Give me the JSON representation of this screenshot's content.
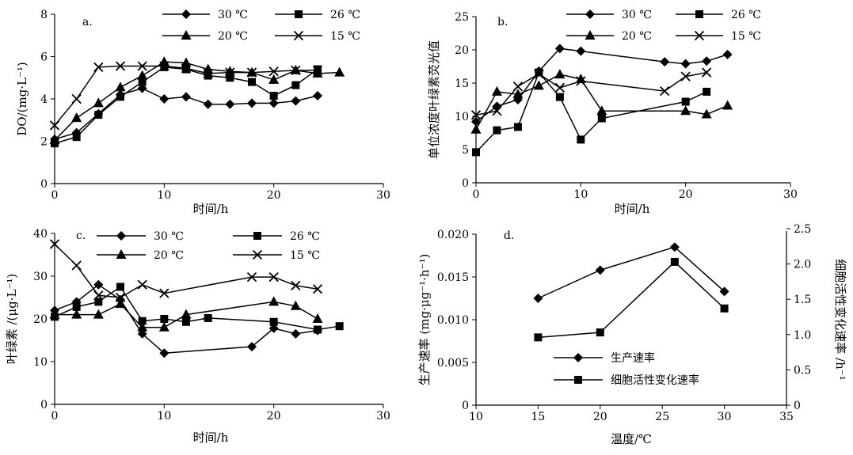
{
  "chart_data": [
    {
      "id": "a",
      "type": "line",
      "panel_label": "a.",
      "xlabel": "时间/h",
      "ylabel": "DO/(mg·L⁻¹)",
      "xlim": [
        0,
        30
      ],
      "ylim": [
        0,
        8
      ],
      "xticks": [
        0,
        10,
        20,
        30
      ],
      "yticks": [
        0,
        2,
        4,
        6,
        8
      ],
      "series": [
        {
          "name": "30 ℃",
          "marker": "diamond",
          "x": [
            0,
            2,
            4,
            6,
            8,
            10,
            12,
            14,
            16,
            18,
            20,
            22,
            24
          ],
          "y": [
            2.1,
            2.4,
            3.3,
            4.2,
            4.5,
            4.0,
            4.1,
            3.75,
            3.75,
            3.8,
            3.8,
            3.9,
            4.15
          ]
        },
        {
          "name": "26 ℃",
          "marker": "square",
          "x": [
            0,
            2,
            4,
            6,
            8,
            10,
            12,
            14,
            16,
            18,
            20,
            22,
            24
          ],
          "y": [
            1.9,
            2.2,
            3.25,
            4.1,
            4.8,
            5.5,
            5.4,
            5.1,
            5.0,
            4.8,
            4.15,
            4.65,
            5.4
          ]
        },
        {
          "name": "20 ℃",
          "marker": "triangle",
          "x": [
            0,
            2,
            4,
            6,
            8,
            10,
            12,
            14,
            16,
            18,
            20,
            22,
            24,
            26
          ],
          "y": [
            2.05,
            3.1,
            3.8,
            4.55,
            5.1,
            5.75,
            5.7,
            5.4,
            5.3,
            5.25,
            4.9,
            5.35,
            5.2,
            5.25
          ]
        },
        {
          "name": "15 ℃",
          "marker": "x",
          "x": [
            0,
            2,
            4,
            6,
            8,
            10,
            12,
            14,
            16,
            18,
            20,
            22,
            24
          ],
          "y": [
            2.75,
            4.0,
            5.5,
            5.55,
            5.55,
            5.55,
            5.45,
            5.2,
            5.25,
            5.25,
            5.3,
            5.35,
            5.35
          ]
        }
      ]
    },
    {
      "id": "b",
      "type": "line",
      "panel_label": "b.",
      "xlabel": "时间/h",
      "ylabel": "单位浓度叶绿素荧光值",
      "xlim": [
        0,
        30
      ],
      "ylim": [
        0,
        25
      ],
      "xticks": [
        0,
        10,
        20,
        30
      ],
      "yticks": [
        0,
        5,
        10,
        15,
        20,
        25
      ],
      "series": [
        {
          "name": "30 ℃",
          "marker": "diamond",
          "x": [
            0,
            2,
            4,
            6,
            8,
            10,
            18,
            20,
            22,
            24
          ],
          "y": [
            9.2,
            11.5,
            12.5,
            16.8,
            20.2,
            19.8,
            18.2,
            17.9,
            18.3,
            19.3
          ]
        },
        {
          "name": "26 ℃",
          "marker": "square",
          "x": [
            0,
            2,
            4,
            6,
            8,
            10,
            12,
            20,
            22
          ],
          "y": [
            4.6,
            7.9,
            8.4,
            16.6,
            12.9,
            6.5,
            9.7,
            12.2,
            13.7
          ]
        },
        {
          "name": "20 ℃",
          "marker": "triangle",
          "x": [
            0,
            2,
            4,
            6,
            8,
            10,
            12,
            20,
            22,
            24
          ],
          "y": [
            8.0,
            13.7,
            13.3,
            14.6,
            16.3,
            15.6,
            10.8,
            10.8,
            10.3,
            11.6
          ]
        },
        {
          "name": "15 ℃",
          "marker": "x",
          "x": [
            0,
            2,
            4,
            6,
            8,
            10,
            18,
            20,
            22
          ],
          "y": [
            10.2,
            10.8,
            14.5,
            16.4,
            14.3,
            15.3,
            13.8,
            16.0,
            16.6
          ]
        }
      ]
    },
    {
      "id": "c",
      "type": "line",
      "panel_label": "c.",
      "xlabel": "时间/h",
      "ylabel": "叶绿素 /(μg·L⁻¹)",
      "xlim": [
        0,
        30
      ],
      "ylim": [
        0,
        40
      ],
      "xticks": [
        0,
        10,
        20,
        30
      ],
      "yticks": [
        0,
        10,
        20,
        30,
        40
      ],
      "series": [
        {
          "name": "30 ℃",
          "marker": "diamond",
          "x": [
            0,
            2,
            4,
            6,
            8,
            10,
            18,
            20,
            22,
            24
          ],
          "y": [
            22.0,
            24.0,
            28.0,
            24.5,
            16.5,
            12.0,
            13.5,
            17.8,
            16.5,
            17.3
          ]
        },
        {
          "name": "26 ℃",
          "marker": "square",
          "x": [
            0,
            2,
            4,
            6,
            8,
            10,
            12,
            14,
            20,
            24,
            26
          ],
          "y": [
            20.5,
            22.8,
            24.0,
            27.5,
            19.5,
            20.0,
            19.3,
            20.2,
            19.3,
            17.5,
            18.3
          ]
        },
        {
          "name": "20 ℃",
          "marker": "triangle",
          "x": [
            0,
            2,
            4,
            6,
            8,
            10,
            12,
            20,
            22,
            24
          ],
          "y": [
            21.0,
            21.0,
            21.0,
            23.5,
            18.0,
            18.0,
            21.0,
            24.0,
            23.0,
            20.0
          ]
        },
        {
          "name": "15 ℃",
          "marker": "x",
          "x": [
            0,
            2,
            4,
            6,
            8,
            10,
            18,
            20,
            22,
            24
          ],
          "y": [
            37.5,
            32.5,
            25.5,
            25.0,
            28.0,
            26.0,
            29.8,
            29.8,
            27.8,
            27.0
          ]
        }
      ]
    },
    {
      "id": "d",
      "type": "line",
      "panel_label": "d.",
      "xlabel": "温度/℃",
      "ylabel": "生产速率 (mg·μg⁻¹·h⁻¹)",
      "ylabel_right": "细胞活性变化速率 /h⁻¹",
      "xlim": [
        10,
        35
      ],
      "ylim": [
        0,
        0.02
      ],
      "ylim_right": [
        0,
        2.5
      ],
      "xticks": [
        10,
        15,
        20,
        25,
        30,
        35
      ],
      "yticks": [
        "0",
        "0.005",
        "0.010",
        "0.015",
        "0.020"
      ],
      "yticks_right": [
        "0",
        "0.5",
        "1.0",
        "1.5",
        "2.0",
        "2.5"
      ],
      "series": [
        {
          "name": "生产速率",
          "marker": "diamond",
          "axis": "left",
          "x": [
            15,
            20,
            26,
            30
          ],
          "y": [
            0.0125,
            0.0158,
            0.0185,
            0.0133
          ]
        },
        {
          "name": "细胞活性变化速率",
          "marker": "square",
          "axis": "right",
          "x": [
            15,
            20,
            26,
            30
          ],
          "y": [
            0.96,
            1.03,
            2.03,
            1.37
          ]
        }
      ]
    }
  ]
}
